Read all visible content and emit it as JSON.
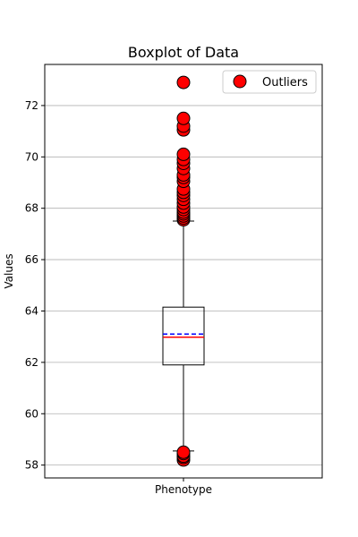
{
  "chart_data": {
    "type": "box",
    "title": "Boxplot of Data",
    "xlabel": "",
    "ylabel": "Values",
    "categories": [
      "Phenotype"
    ],
    "ylim": [
      57.5,
      73.6
    ],
    "yticks": [
      58,
      60,
      62,
      64,
      66,
      68,
      70,
      72
    ],
    "grid": "horizontal",
    "legend": {
      "position": "top-right",
      "entries": [
        "Outliers"
      ]
    },
    "box": {
      "category": "Phenotype",
      "q1": 61.9,
      "median": 62.98,
      "mean": 63.1,
      "q3": 64.15,
      "whisker_low": 58.55,
      "whisker_high": 67.5,
      "outliers": [
        58.2,
        58.3,
        58.35,
        58.45,
        58.5,
        67.55,
        67.62,
        67.7,
        67.78,
        67.85,
        67.95,
        68.05,
        68.2,
        68.35,
        68.5,
        68.62,
        68.75,
        69.05,
        69.2,
        69.3,
        69.55,
        69.75,
        69.9,
        70.1,
        71.05,
        71.2,
        71.5,
        72.9
      ]
    },
    "colors": {
      "outlier_fill": "#ff0000",
      "outlier_edge": "#000000",
      "median_line": "#ff0000",
      "mean_line": "#0000ff",
      "grid": "#b0b0b0"
    }
  }
}
